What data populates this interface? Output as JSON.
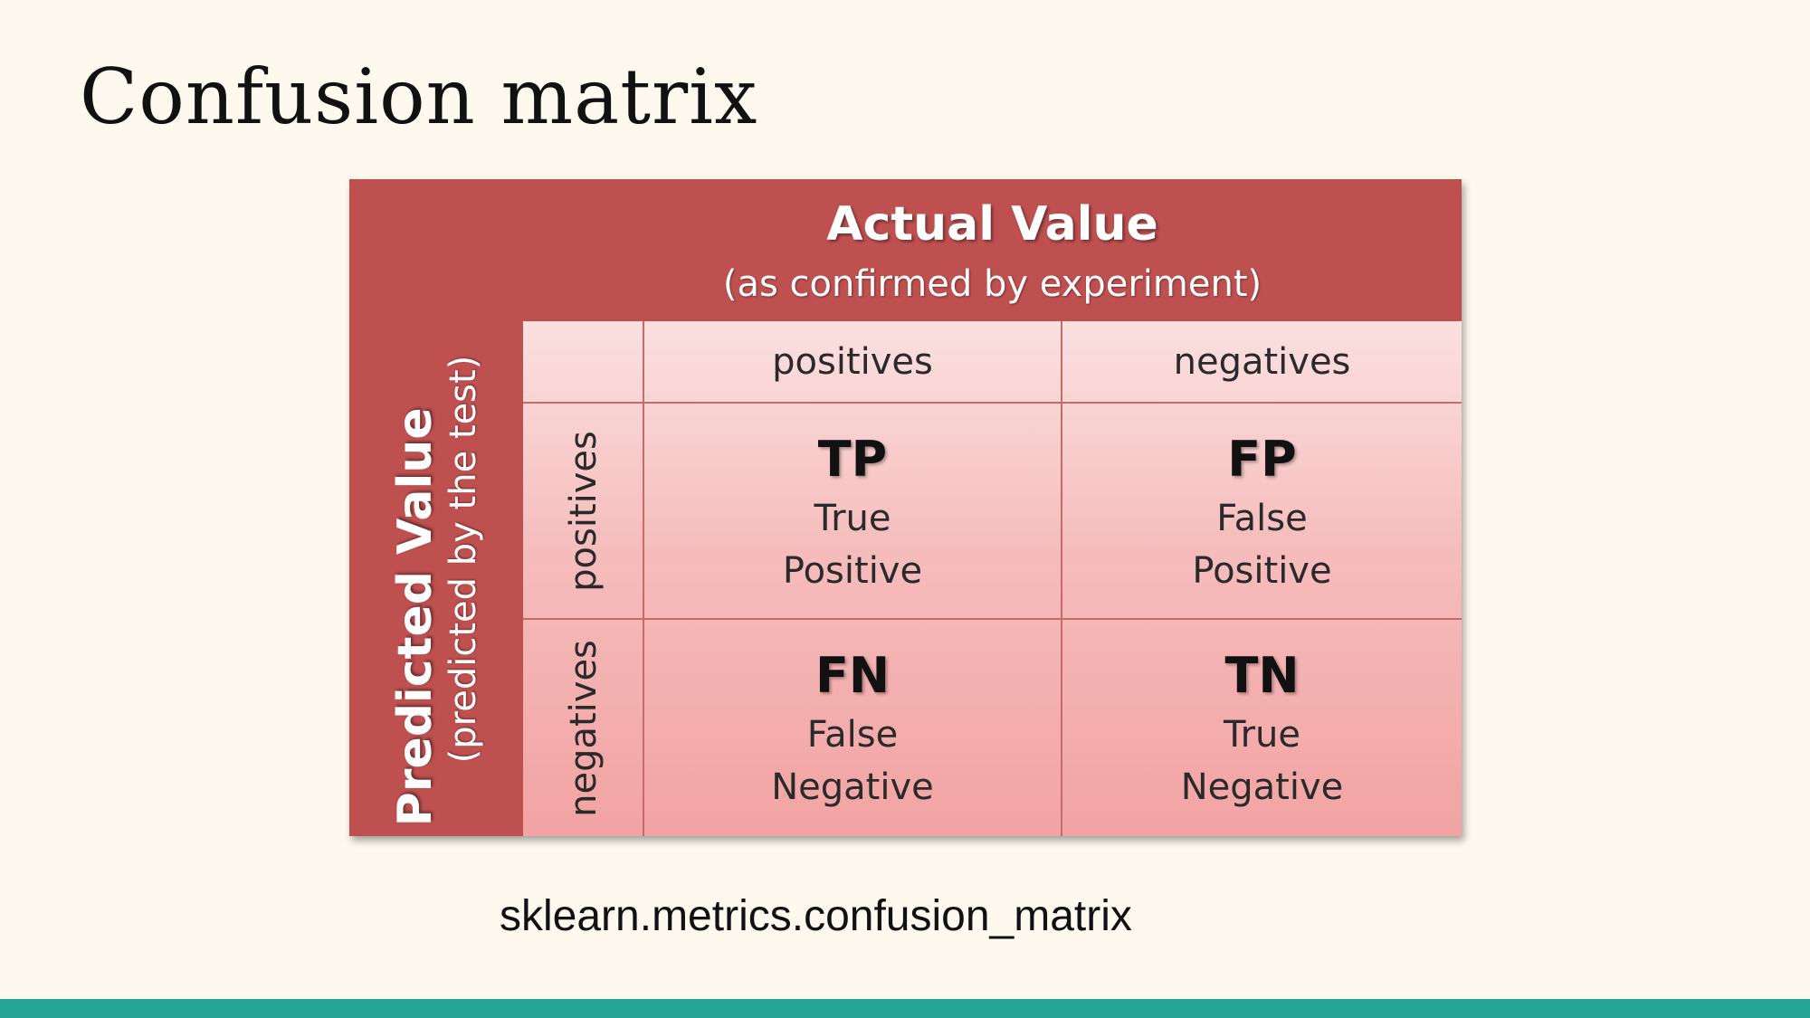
{
  "slide": {
    "title": "Confusion matrix",
    "caption": "sklearn.metrics.confusion_matrix",
    "accent_color": "#26a597",
    "background_color": "#fdf9ef"
  },
  "matrix": {
    "actual_title": "Actual Value",
    "actual_subtitle": "(as confirmed by experiment)",
    "predicted_title": "Predicted Value",
    "predicted_subtitle": "(predicted by the test)",
    "column_headers": [
      "positives",
      "negatives"
    ],
    "row_headers": [
      "positives",
      "negatives"
    ],
    "cells": [
      {
        "abbr": "TP",
        "line1": "True",
        "line2": "Positive"
      },
      {
        "abbr": "FP",
        "line1": "False",
        "line2": "Positive"
      },
      {
        "abbr": "FN",
        "line1": "False",
        "line2": "Negative"
      },
      {
        "abbr": "TN",
        "line1": "True",
        "line2": "Negative"
      }
    ],
    "header_color": "#bf5050",
    "cell_color": "#f4b0b0"
  }
}
